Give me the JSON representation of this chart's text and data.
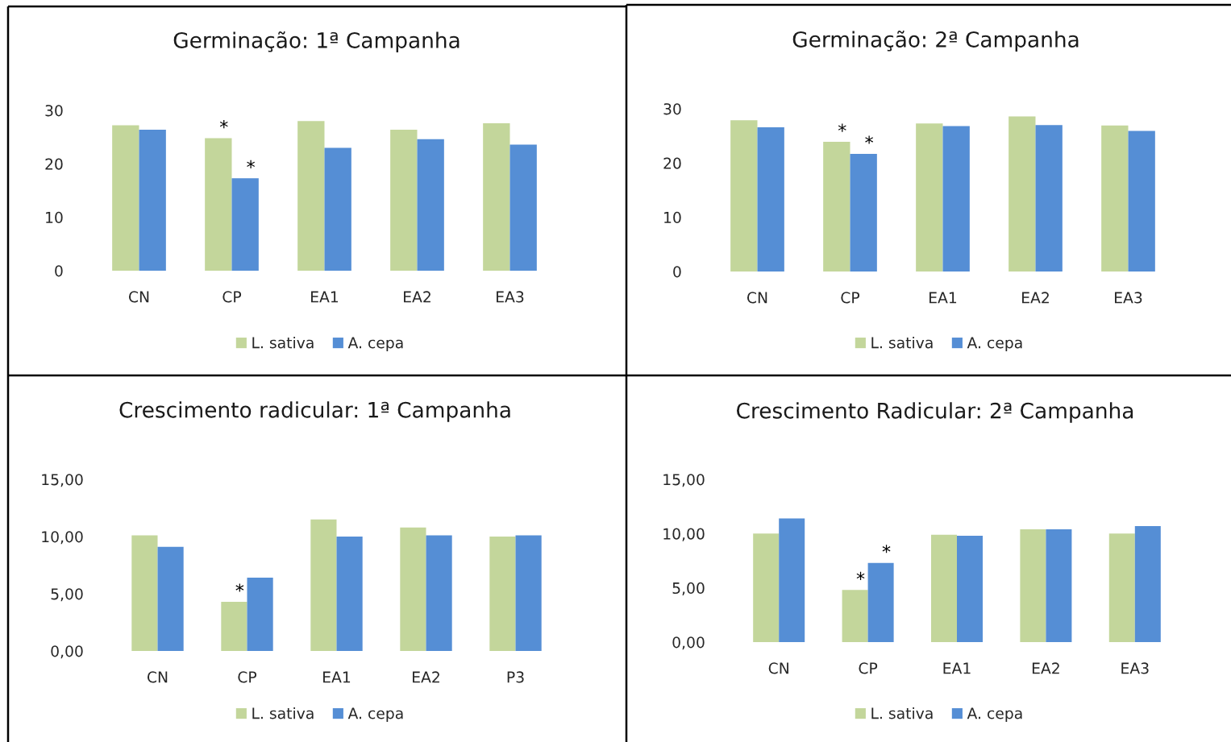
{
  "chart_data": [
    {
      "type": "bar",
      "title": "Germinação: 1ª Campanha",
      "categories": [
        "CN",
        "CP",
        "EA1",
        "EA2",
        "EA3"
      ],
      "series": [
        {
          "name": "L. sativa",
          "color": "#c3d69b",
          "values": [
            27.2,
            24.8,
            28.0,
            26.4,
            27.6
          ]
        },
        {
          "name": "A. cepa",
          "color": "#558ed5",
          "values": [
            26.4,
            17.3,
            23.0,
            24.6,
            23.6
          ]
        }
      ],
      "ylim": [
        0,
        30
      ],
      "yticks": [
        0,
        10,
        20,
        30
      ],
      "legend": "bottom",
      "annotations": [
        {
          "text": "*",
          "x": "CP",
          "y": 24.8
        },
        {
          "text": "*",
          "x": "CP",
          "y": 17.3
        }
      ]
    },
    {
      "type": "bar",
      "title": "Germinação: 2ª Campanha",
      "categories": [
        "CN",
        "CP",
        "EA1",
        "EA2",
        "EA3"
      ],
      "series": [
        {
          "name": "L. sativa",
          "color": "#c3d69b",
          "values": [
            27.9,
            23.9,
            27.3,
            28.6,
            26.9
          ]
        },
        {
          "name": "A. cepa",
          "color": "#558ed5",
          "values": [
            26.6,
            21.7,
            26.8,
            27.0,
            25.9
          ]
        }
      ],
      "ylim": [
        0,
        30
      ],
      "yticks": [
        0,
        10,
        20,
        30
      ],
      "legend": "bottom",
      "annotations": [
        {
          "text": "*",
          "x": "CP",
          "y": 23.9
        },
        {
          "text": "*",
          "x": "CP",
          "y": 21.7
        }
      ]
    },
    {
      "type": "bar",
      "title": "Crescimento radicular: 1ª Campanha",
      "categories": [
        "CN",
        "CP",
        "EA1",
        "EA2",
        "P3"
      ],
      "series": [
        {
          "name": "L. sativa",
          "color": "#c3d69b",
          "values": [
            10.1,
            4.3,
            11.5,
            10.8,
            10.0
          ]
        },
        {
          "name": "A. cepa",
          "color": "#558ed5",
          "values": [
            9.1,
            6.4,
            10.0,
            10.1,
            10.1
          ]
        }
      ],
      "ylim": [
        0,
        15
      ],
      "yticks": [
        {
          "value": 0,
          "label": "0,00"
        },
        {
          "value": 5,
          "label": "5,00"
        },
        {
          "value": 10,
          "label": "10,00"
        },
        {
          "value": 15,
          "label": "15,00"
        }
      ],
      "legend": "bottom",
      "annotations": [
        {
          "text": "*",
          "x": "CP",
          "y": 4.3
        }
      ]
    },
    {
      "type": "bar",
      "title": "Crescimento Radicular: 2ª Campanha",
      "categories": [
        "CN",
        "CP",
        "EA1",
        "EA2",
        "EA3"
      ],
      "series": [
        {
          "name": "L. sativa",
          "color": "#c3d69b",
          "values": [
            10.0,
            4.8,
            9.9,
            10.4,
            10.0
          ]
        },
        {
          "name": "A. cepa",
          "color": "#558ed5",
          "values": [
            11.4,
            7.3,
            9.8,
            10.4,
            10.7
          ]
        }
      ],
      "ylim": [
        0,
        15
      ],
      "yticks": [
        {
          "value": 0,
          "label": "0,00"
        },
        {
          "value": 5,
          "label": "5,00"
        },
        {
          "value": 10,
          "label": "10,00"
        },
        {
          "value": 15,
          "label": "15,00"
        }
      ],
      "legend": "bottom",
      "annotations": [
        {
          "text": "*",
          "x": "CP",
          "y": 4.8
        },
        {
          "text": "*",
          "x": "CP",
          "y": 7.3
        }
      ]
    }
  ]
}
